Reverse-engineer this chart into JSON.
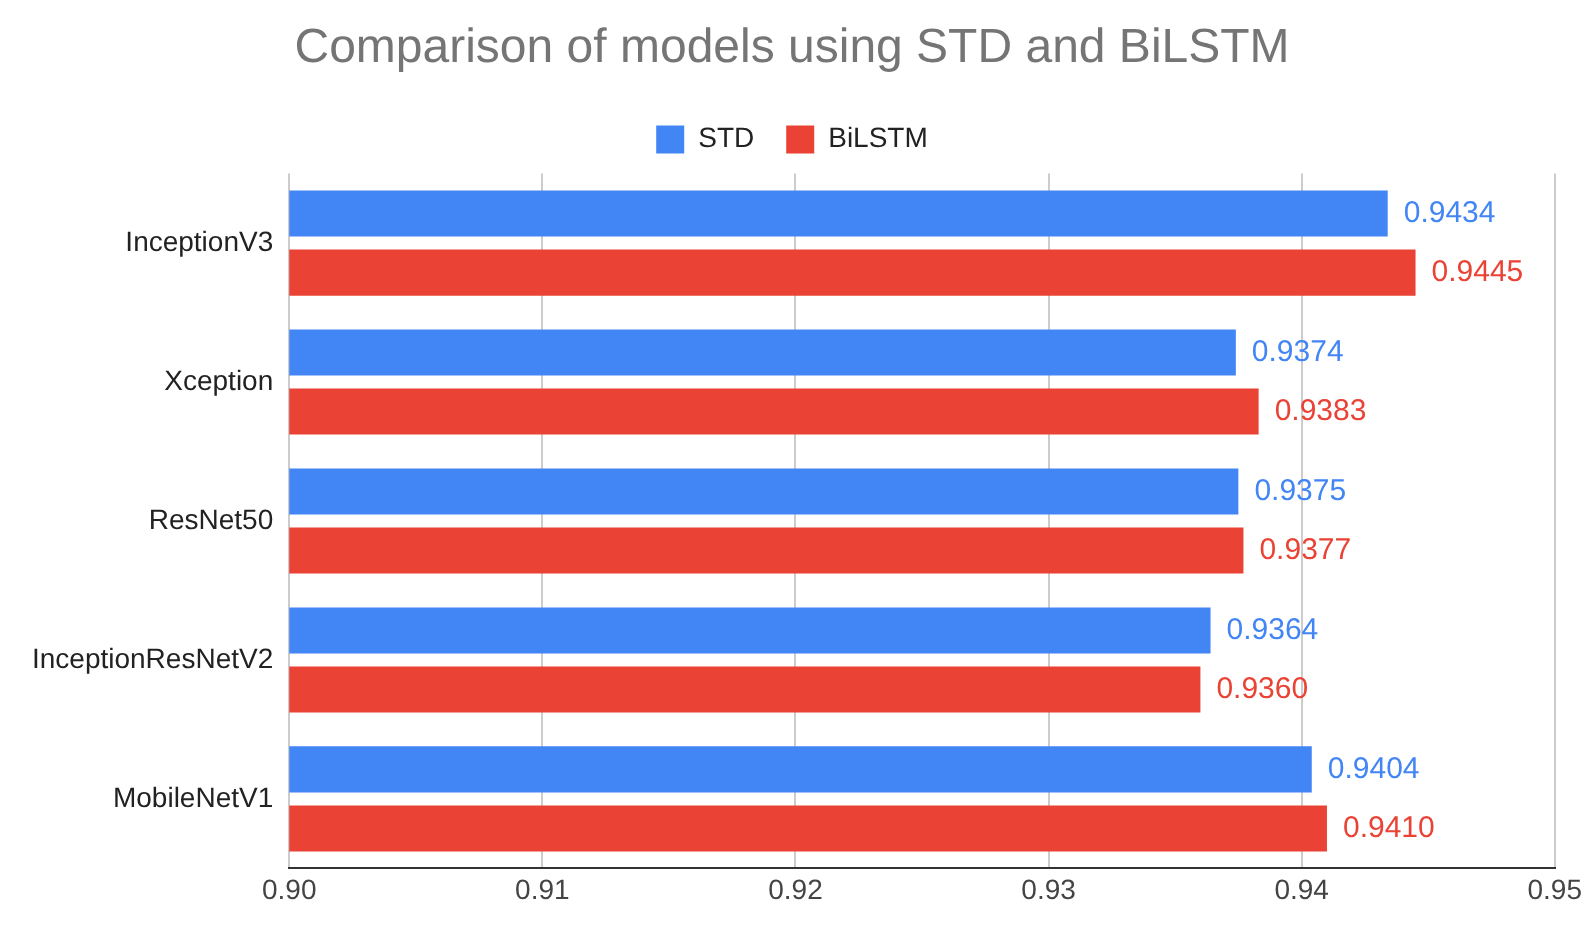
{
  "chart_data": {
    "type": "bar",
    "orientation": "horizontal",
    "title": "Comparison of models using STD and BiLSTM",
    "categories": [
      "InceptionV3",
      "Xception",
      "ResNet50",
      "InceptionResNetV2",
      "MobileNetV1"
    ],
    "series": [
      {
        "name": "STD",
        "color": "#4285f4",
        "values": [
          0.9434,
          0.9374,
          0.9375,
          0.9364,
          0.9404
        ],
        "value_labels": [
          "0.9434",
          "0.9374",
          "0.9375",
          "0.9364",
          "0.9404"
        ]
      },
      {
        "name": "BiLSTM",
        "color": "#ea4335",
        "values": [
          0.9445,
          0.9383,
          0.9377,
          0.936,
          0.941
        ],
        "value_labels": [
          "0.9445",
          "0.9383",
          "0.9377",
          "0.9360",
          "0.9410"
        ]
      }
    ],
    "xlim": [
      0.9,
      0.95
    ],
    "xticks": [
      {
        "value": 0.9,
        "label": "0.90"
      },
      {
        "value": 0.91,
        "label": "0.91"
      },
      {
        "value": 0.92,
        "label": "0.92"
      },
      {
        "value": 0.93,
        "label": "0.93"
      },
      {
        "value": 0.94,
        "label": "0.94"
      },
      {
        "value": 0.95,
        "label": "0.95"
      }
    ],
    "grid": "x",
    "legend": "top"
  }
}
